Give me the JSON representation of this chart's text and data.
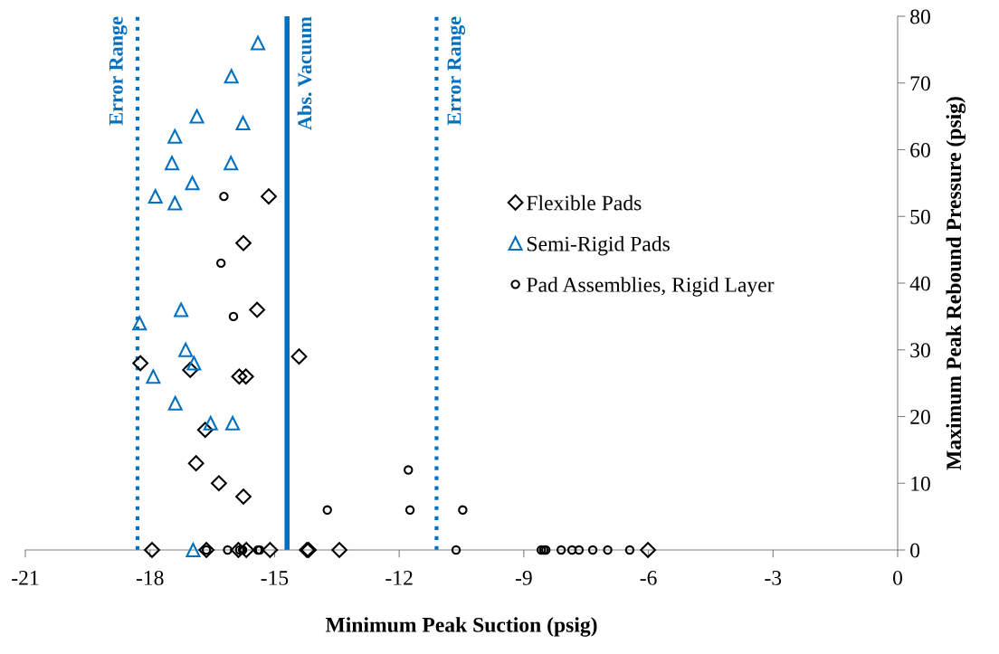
{
  "chart_data": {
    "type": "scatter",
    "xlabel": "Minimum Peak Suction (psig)",
    "ylabel": "Maximum Peak Rebound Pressure (psig)",
    "xlim": [
      -21,
      0
    ],
    "xticks": [
      -21,
      -18,
      -15,
      -12,
      -9,
      -6,
      -3,
      0
    ],
    "ylim": [
      0,
      80
    ],
    "yticks": [
      0,
      10,
      20,
      30,
      40,
      50,
      60,
      70,
      80
    ],
    "grid": false,
    "legend": "right",
    "series": [
      {
        "name": "Flexible Pads",
        "color": "#000000",
        "marker": "diamond",
        "x": [
          -15.14,
          -15.75,
          -15.42,
          -14.41,
          -18.23,
          -17.03,
          -15.85,
          -15.69,
          -16.67,
          -16.89,
          -16.34,
          -15.75,
          -17.95,
          -16.64,
          -15.87,
          -15.68,
          -15.11,
          -14.22,
          -14.18,
          -13.44,
          -6.01
        ],
        "values": [
          53,
          46,
          36,
          29,
          28,
          27,
          26,
          26,
          18,
          13,
          10,
          8,
          0,
          0,
          0,
          0,
          0,
          0,
          0,
          0,
          0
        ]
      },
      {
        "name": "Semi-Rigid Pads",
        "color": "#0070c0",
        "marker": "triangle",
        "x": [
          -15.4,
          -16.04,
          -16.87,
          -15.76,
          -17.4,
          -17.47,
          -16.05,
          -16.98,
          -17.87,
          -17.4,
          -17.25,
          -18.25,
          -17.14,
          -16.94,
          -17.92,
          -17.39,
          -16.54,
          -16.01,
          -16.96
        ],
        "values": [
          76,
          71,
          65,
          64,
          62,
          58,
          58,
          55,
          53,
          52,
          36,
          34,
          30,
          28,
          26,
          22,
          19,
          19,
          0
        ]
      },
      {
        "name": "Pad Assemblies, Rigid Layer",
        "color": "#000000",
        "marker": "circle",
        "x": [
          -16.22,
          -16.29,
          -15.99,
          -11.78,
          -13.73,
          -11.74,
          -10.47,
          -16.64,
          -16.13,
          -15.84,
          -15.77,
          -15.4,
          -15.36,
          -10.63,
          -8.58,
          -8.52,
          -8.47,
          -8.1,
          -7.84,
          -7.67,
          -7.34,
          -6.98,
          -6.45
        ],
        "values": [
          53,
          43,
          35,
          12,
          6,
          6,
          6,
          0,
          0,
          0,
          0,
          0,
          0,
          0,
          0,
          0,
          0,
          0,
          0,
          0,
          0,
          0,
          0
        ]
      }
    ],
    "ref_lines": [
      {
        "axis": "x",
        "value": -18.3,
        "label": "Error Range",
        "color": "#0070c0",
        "line_style": "dotted"
      },
      {
        "axis": "x",
        "value": -14.7,
        "label": "Abs. Vacuum",
        "color": "#0070c0",
        "line_style": "solid"
      },
      {
        "axis": "x",
        "value": -11.1,
        "label": "Error Range",
        "color": "#0070c0",
        "line_style": "dotted"
      }
    ]
  }
}
